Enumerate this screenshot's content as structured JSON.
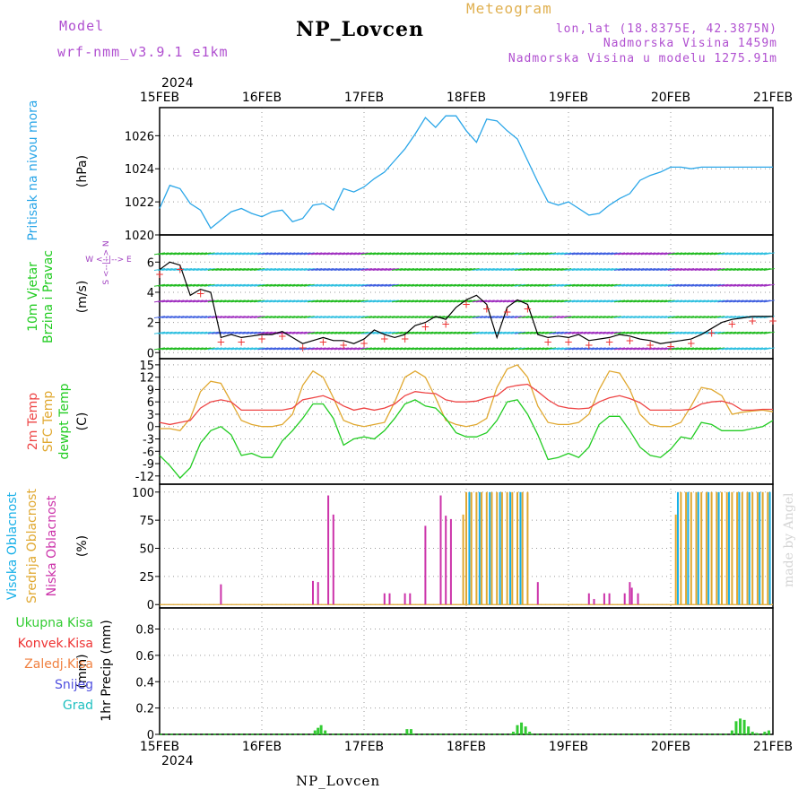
{
  "header": {
    "model_label": "Model",
    "model_name": "wrf-nmm_v3.9.1 e1km",
    "station": "NP_Lovcen",
    "meteogram_label": "Meteogram",
    "lonlat": "lon,lat (18.8375E, 42.3875N)",
    "altitude": "Nadmorska Visina 1459m",
    "model_altitude": "Nadmorska Visina u modelu 1275.91m"
  },
  "footer": {
    "station": "NP_Lovcen",
    "credit": "made by Angel"
  },
  "time_axis": {
    "year": "2024",
    "ticks": [
      "15FEB",
      "16FEB",
      "17FEB",
      "18FEB",
      "19FEB",
      "20FEB",
      "21FEB"
    ]
  },
  "colors": {
    "pressure": "#2aa6e8",
    "wind_speed": "#000000",
    "wind_gust_marker": "#ee3333",
    "temp_2m": "#ee4444",
    "temp_sfc": "#e0a830",
    "temp_dew": "#22cc22",
    "cloud_high": "#18b0e8",
    "cloud_mid": "#e0a830",
    "cloud_low": "#cc33aa",
    "precip_total": "#33cc33",
    "precip_conv": "#ee3333",
    "precip_frozen": "#f08040",
    "snow": "#5050e0",
    "graupel": "#20c0c0"
  },
  "chart_data": [
    {
      "type": "line",
      "title": "",
      "ylabel": "Pritisak na nivou mora",
      "units": "(hPa)",
      "ylim": [
        1020,
        1027.7
      ],
      "yticks": [
        "1020",
        "1022",
        "1024",
        "1026"
      ],
      "grid": true,
      "series": [
        {
          "name": "Pritisak na nivou mora",
          "x": [
            0,
            0.1,
            0.2,
            0.3,
            0.4,
            0.5,
            0.6,
            0.7,
            0.8,
            0.9,
            1.0,
            1.1,
            1.2,
            1.3,
            1.4,
            1.5,
            1.6,
            1.7,
            1.8,
            1.9,
            2.0,
            2.1,
            2.2,
            2.3,
            2.4,
            2.5,
            2.6,
            2.7,
            2.8,
            2.9,
            3.0,
            3.1,
            3.2,
            3.3,
            3.4,
            3.5,
            3.6,
            3.7,
            3.8,
            3.9,
            4.0,
            4.1,
            4.2,
            4.3,
            4.4,
            4.5,
            4.6,
            4.7,
            4.8,
            4.9,
            5.0,
            5.1,
            5.2,
            5.3,
            5.4,
            5.5,
            5.6,
            5.7,
            5.8,
            5.9,
            6.0
          ],
          "values": [
            1021.6,
            1023.0,
            1022.8,
            1021.9,
            1021.5,
            1020.4,
            1020.9,
            1021.4,
            1021.6,
            1021.3,
            1021.1,
            1021.4,
            1021.5,
            1020.8,
            1021.0,
            1021.8,
            1021.9,
            1021.5,
            1022.8,
            1022.6,
            1022.9,
            1023.4,
            1023.8,
            1024.5,
            1025.2,
            1026.1,
            1027.1,
            1026.5,
            1027.2,
            1027.2,
            1026.3,
            1025.6,
            1027.0,
            1026.9,
            1026.3,
            1025.8,
            1024.5,
            1023.2,
            1022.0,
            1021.8,
            1022.0,
            1021.6,
            1021.2,
            1021.3,
            1021.8,
            1022.2,
            1022.5,
            1023.3,
            1023.6,
            1023.8,
            1024.1,
            1024.1,
            1024.0,
            1024.1,
            1024.1,
            1024.1,
            1024.1,
            1024.1,
            1024.1,
            1024.1,
            1024.1
          ]
        }
      ]
    },
    {
      "type": "line",
      "ylabel": "10m Vjetar Brzina i Pravac",
      "units": "(m/s)",
      "ylim": [
        -0.4,
        7.8
      ],
      "yticks": [
        "0",
        "2",
        "4",
        "6"
      ],
      "grid": true,
      "compass": [
        "W",
        "<-",
        "|",
        "->",
        "E",
        "N",
        "^",
        "v",
        "S"
      ],
      "series": [
        {
          "name": "Brzina",
          "x": [
            0,
            0.1,
            0.2,
            0.3,
            0.4,
            0.5,
            0.6,
            0.7,
            0.8,
            0.9,
            1.0,
            1.1,
            1.2,
            1.3,
            1.4,
            1.5,
            1.6,
            1.7,
            1.8,
            1.9,
            2.0,
            2.1,
            2.2,
            2.3,
            2.4,
            2.5,
            2.6,
            2.7,
            2.8,
            2.9,
            3.0,
            3.1,
            3.2,
            3.3,
            3.4,
            3.5,
            3.6,
            3.7,
            3.8,
            3.9,
            4.0,
            4.1,
            4.2,
            4.3,
            4.4,
            4.5,
            4.6,
            4.7,
            4.8,
            4.9,
            5.0,
            5.1,
            5.2,
            5.3,
            5.4,
            5.5,
            5.6,
            5.7,
            5.8,
            5.9,
            6.0
          ],
          "values": [
            5.5,
            6.0,
            5.8,
            3.8,
            4.2,
            4.0,
            1.0,
            1.2,
            1.0,
            1.1,
            1.2,
            1.2,
            1.4,
            1.0,
            0.6,
            0.8,
            1.0,
            0.8,
            0.8,
            0.6,
            0.9,
            1.5,
            1.2,
            1.0,
            1.2,
            1.8,
            2.0,
            2.4,
            2.2,
            3.0,
            3.5,
            3.8,
            3.2,
            1.0,
            3.0,
            3.5,
            3.2,
            1.2,
            1.0,
            1.1,
            1.0,
            1.2,
            0.8,
            0.9,
            1.0,
            1.2,
            1.1,
            0.9,
            0.8,
            0.6,
            0.7,
            0.8,
            0.9,
            1.2,
            1.6,
            2.0,
            2.2,
            2.3,
            2.4,
            2.4,
            2.4
          ]
        }
      ]
    },
    {
      "type": "line",
      "ylabel": "2m Temp / SFC Temp / dewpt Temp",
      "units": "(C)",
      "ylim": [
        -14,
        16.5
      ],
      "yticks": [
        "15",
        "12",
        "9",
        "6",
        "3",
        "0",
        "-3",
        "-6",
        "-9",
        "-12"
      ],
      "grid": true,
      "series": [
        {
          "name": "2m Temp",
          "x": [
            0,
            0.1,
            0.2,
            0.3,
            0.4,
            0.5,
            0.6,
            0.7,
            0.8,
            0.9,
            1.0,
            1.1,
            1.2,
            1.3,
            1.4,
            1.5,
            1.6,
            1.7,
            1.8,
            1.9,
            2.0,
            2.1,
            2.2,
            2.3,
            2.4,
            2.5,
            2.6,
            2.7,
            2.8,
            2.9,
            3.0,
            3.1,
            3.2,
            3.3,
            3.4,
            3.5,
            3.6,
            3.7,
            3.8,
            3.9,
            4.0,
            4.1,
            4.2,
            4.3,
            4.4,
            4.5,
            4.6,
            4.7,
            4.8,
            4.9,
            5.0,
            5.1,
            5.2,
            5.3,
            5.4,
            5.5,
            5.6,
            5.7,
            5.8,
            5.9,
            6.0
          ],
          "values": [
            1.0,
            0.5,
            1.0,
            1.5,
            4.5,
            6.0,
            6.5,
            6.0,
            4.0,
            4.0,
            4.0,
            4.0,
            4.0,
            4.5,
            6.5,
            7.0,
            7.5,
            6.5,
            5.0,
            4.0,
            4.5,
            4.0,
            4.5,
            5.5,
            7.5,
            8.5,
            8.2,
            8.0,
            6.5,
            6.0,
            6.0,
            6.2,
            7.0,
            7.5,
            9.5,
            10.0,
            10.3,
            8.5,
            6.5,
            5.0,
            4.5,
            4.3,
            4.5,
            6.0,
            7.0,
            7.5,
            6.8,
            5.8,
            4.0,
            4.0,
            4.0,
            4.0,
            4.2,
            5.5,
            6.0,
            6.2,
            5.5,
            4.0,
            4.0,
            4.2,
            4.2
          ]
        },
        {
          "name": "SFC Temp",
          "x": [
            0,
            0.1,
            0.2,
            0.3,
            0.4,
            0.5,
            0.6,
            0.7,
            0.8,
            0.9,
            1.0,
            1.1,
            1.2,
            1.3,
            1.4,
            1.5,
            1.6,
            1.7,
            1.8,
            1.9,
            2.0,
            2.1,
            2.2,
            2.3,
            2.4,
            2.5,
            2.6,
            2.7,
            2.8,
            2.9,
            3.0,
            3.1,
            3.2,
            3.3,
            3.4,
            3.5,
            3.6,
            3.7,
            3.8,
            3.9,
            4.0,
            4.1,
            4.2,
            4.3,
            4.4,
            4.5,
            4.6,
            4.7,
            4.8,
            4.9,
            5.0,
            5.1,
            5.2,
            5.3,
            5.4,
            5.5,
            5.6,
            5.7,
            5.8,
            5.9,
            6.0
          ],
          "values": [
            -0.5,
            -0.5,
            -1.0,
            2.0,
            8.5,
            11.0,
            10.5,
            6.0,
            1.5,
            0.5,
            0.0,
            0.0,
            0.5,
            3.0,
            10.0,
            13.5,
            12.0,
            7.0,
            1.5,
            0.5,
            0.0,
            0.5,
            1.0,
            6.0,
            12.0,
            13.5,
            12.0,
            7.0,
            1.5,
            0.5,
            0.0,
            0.5,
            2.0,
            9.5,
            14.0,
            15.0,
            12.0,
            5.0,
            1.0,
            0.5,
            0.5,
            1.0,
            3.0,
            9.0,
            13.5,
            13.0,
            9.0,
            3.0,
            0.5,
            0.0,
            0.0,
            1.0,
            5.0,
            9.5,
            9.0,
            7.5,
            3.0,
            3.5,
            3.8,
            4.0,
            3.6
          ]
        },
        {
          "name": "dewpt Temp",
          "x": [
            0,
            0.1,
            0.2,
            0.3,
            0.4,
            0.5,
            0.6,
            0.7,
            0.8,
            0.9,
            1.0,
            1.1,
            1.2,
            1.3,
            1.4,
            1.5,
            1.6,
            1.7,
            1.8,
            1.9,
            2.0,
            2.1,
            2.2,
            2.3,
            2.4,
            2.5,
            2.6,
            2.7,
            2.8,
            2.9,
            3.0,
            3.1,
            3.2,
            3.3,
            3.4,
            3.5,
            3.6,
            3.7,
            3.8,
            3.9,
            4.0,
            4.1,
            4.2,
            4.3,
            4.4,
            4.5,
            4.6,
            4.7,
            4.8,
            4.9,
            5.0,
            5.1,
            5.2,
            5.3,
            5.4,
            5.5,
            5.6,
            5.7,
            5.8,
            5.9,
            6.0
          ],
          "values": [
            -7.0,
            -9.5,
            -12.5,
            -10.0,
            -4.0,
            -1.0,
            0.0,
            -2.0,
            -7.0,
            -6.5,
            -7.5,
            -7.5,
            -3.5,
            -1.0,
            2.0,
            5.5,
            5.5,
            2.0,
            -4.5,
            -3.0,
            -2.5,
            -3.0,
            -1.0,
            2.0,
            5.5,
            6.5,
            5.0,
            4.5,
            2.0,
            -1.5,
            -2.5,
            -2.5,
            -1.5,
            1.5,
            6.0,
            6.5,
            3.0,
            -2.0,
            -8.0,
            -7.5,
            -6.5,
            -7.5,
            -5.0,
            0.5,
            2.5,
            2.5,
            -1.0,
            -5.0,
            -7.0,
            -7.5,
            -5.5,
            -2.5,
            -3.0,
            1.0,
            0.5,
            -1.0,
            -1.0,
            -1.0,
            -0.5,
            0.0,
            1.5
          ]
        }
      ]
    },
    {
      "type": "bar",
      "ylabel": "Visoka Oblacnost / Srednja Oblacnost / Niska Oblacnost",
      "units": "(%)",
      "ylim": [
        -3,
        107
      ],
      "yticks": [
        "0",
        "25",
        "50",
        "75",
        "100"
      ],
      "grid": true,
      "series": [
        {
          "name": "Niska Oblacnost",
          "x": [
            0.6,
            1.5,
            1.55,
            1.65,
            1.7,
            2.2,
            2.25,
            2.4,
            2.45,
            2.6,
            2.75,
            2.8,
            2.85,
            3.7,
            4.2,
            4.25,
            4.35,
            4.4,
            4.55,
            4.6,
            4.62,
            4.68
          ],
          "values": [
            18,
            21,
            20,
            97,
            80,
            10,
            10,
            10,
            10,
            70,
            97,
            79,
            76,
            20,
            10,
            5,
            10,
            10,
            10,
            20,
            15,
            10
          ]
        },
        {
          "name": "Srednja Oblacnost",
          "x": [
            2.97,
            3.0,
            3.05,
            3.1,
            3.15,
            3.2,
            3.25,
            3.3,
            3.35,
            3.4,
            3.45,
            3.5,
            3.55,
            3.6,
            5.05,
            5.1,
            5.15,
            5.2,
            5.25,
            5.3,
            5.35,
            5.4,
            5.45,
            5.5,
            5.55,
            5.6,
            5.65,
            5.7,
            5.75,
            5.8,
            5.85,
            5.9,
            5.95
          ],
          "values": [
            80,
            100,
            100,
            100,
            100,
            100,
            100,
            100,
            100,
            100,
            100,
            100,
            100,
            100,
            80,
            100,
            100,
            100,
            100,
            100,
            100,
            100,
            100,
            100,
            100,
            100,
            100,
            100,
            100,
            100,
            100,
            100,
            100
          ]
        },
        {
          "name": "Visoka Oblacnost",
          "x": [
            3.03,
            3.13,
            3.23,
            3.33,
            3.43,
            3.53,
            5.07,
            5.17,
            5.27,
            5.37,
            5.47,
            5.57,
            5.67,
            5.77,
            5.87,
            5.97
          ],
          "values": [
            100,
            100,
            100,
            100,
            100,
            100,
            100,
            100,
            100,
            100,
            100,
            100,
            100,
            100,
            100,
            100
          ]
        }
      ]
    },
    {
      "type": "bar",
      "ylabel": "1hr Precip",
      "units": "(mm)",
      "ylim": [
        0,
        0.96
      ],
      "yticks": [
        "0",
        "0.2",
        "0.4",
        "0.6",
        "0.8"
      ],
      "grid": true,
      "legend": [
        "Ukupna Kisa",
        "Konvek.Kisa",
        "Zaledj.Kisa",
        "Snijeg",
        "Grad"
      ],
      "series": [
        {
          "name": "Ukupna Kisa",
          "x": [
            1.52,
            1.55,
            1.58,
            1.62,
            2.42,
            2.46,
            3.46,
            3.5,
            3.54,
            3.58,
            3.62,
            5.6,
            5.64,
            5.68,
            5.72,
            5.76,
            5.8,
            5.84,
            5.92,
            5.96
          ],
          "values": [
            0.03,
            0.05,
            0.07,
            0.03,
            0.04,
            0.04,
            0.02,
            0.07,
            0.09,
            0.06,
            0.02,
            0.03,
            0.1,
            0.12,
            0.11,
            0.06,
            0.02,
            0.01,
            0.02,
            0.03
          ]
        }
      ]
    }
  ]
}
